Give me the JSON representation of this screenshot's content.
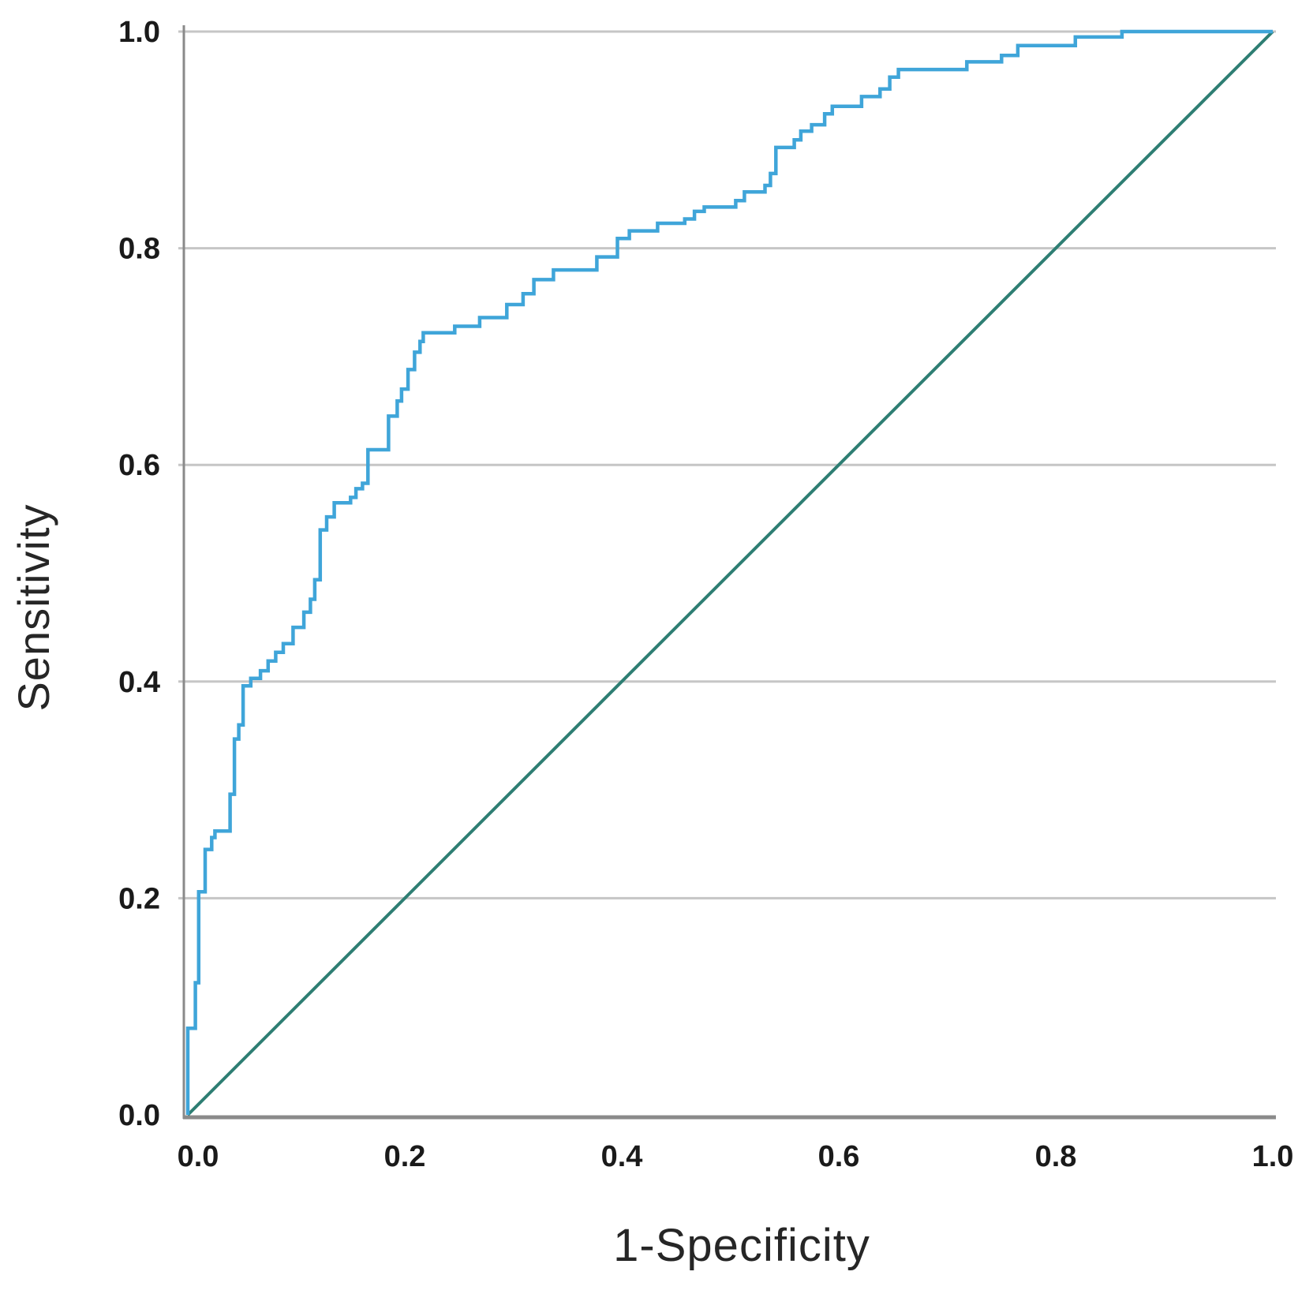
{
  "chart_data": {
    "type": "line",
    "subtype": "roc-curve",
    "title": "",
    "xlabel": "1-Specificity",
    "ylabel": "Sensitivity",
    "xlim": [
      0.0,
      1.0
    ],
    "ylim": [
      0.0,
      1.0
    ],
    "grid": "horizontal-only",
    "legend": "none",
    "x_ticks": {
      "values": [
        0.0,
        0.2,
        0.4,
        0.6,
        0.8,
        1.0
      ],
      "labels": [
        "0.0",
        "0.2",
        "0.4",
        "0.6",
        "0.8",
        "1.0"
      ]
    },
    "y_ticks": {
      "values": [
        0.0,
        0.2,
        0.4,
        0.6,
        0.8,
        1.0
      ],
      "labels": [
        "0.0",
        "0.2",
        "0.4",
        "0.6",
        "0.8",
        "1.0"
      ]
    },
    "colors": {
      "roc_curve": "#3FA5D9",
      "reference_diagonal": "#2E7E73",
      "gridline": "#c6c6c6",
      "axis_line": "#8a8a8a",
      "text": "#1a1a1a"
    },
    "series": [
      {
        "name": "ROC curve",
        "draw": "step-polyline",
        "color_key": "roc_curve",
        "stroke_width": 4.5,
        "points": [
          [
            0.0,
            0.0
          ],
          [
            0.0,
            0.08
          ],
          [
            0.007,
            0.08
          ],
          [
            0.007,
            0.122
          ],
          [
            0.01,
            0.122
          ],
          [
            0.01,
            0.206
          ],
          [
            0.016,
            0.206
          ],
          [
            0.016,
            0.245
          ],
          [
            0.022,
            0.245
          ],
          [
            0.022,
            0.256
          ],
          [
            0.025,
            0.256
          ],
          [
            0.025,
            0.262
          ],
          [
            0.039,
            0.262
          ],
          [
            0.039,
            0.296
          ],
          [
            0.043,
            0.296
          ],
          [
            0.043,
            0.347
          ],
          [
            0.047,
            0.347
          ],
          [
            0.047,
            0.36
          ],
          [
            0.051,
            0.36
          ],
          [
            0.051,
            0.396
          ],
          [
            0.058,
            0.396
          ],
          [
            0.058,
            0.403
          ],
          [
            0.067,
            0.403
          ],
          [
            0.067,
            0.41
          ],
          [
            0.074,
            0.41
          ],
          [
            0.074,
            0.419
          ],
          [
            0.081,
            0.419
          ],
          [
            0.081,
            0.427
          ],
          [
            0.088,
            0.427
          ],
          [
            0.088,
            0.435
          ],
          [
            0.097,
            0.435
          ],
          [
            0.097,
            0.45
          ],
          [
            0.107,
            0.45
          ],
          [
            0.107,
            0.464
          ],
          [
            0.113,
            0.464
          ],
          [
            0.113,
            0.476
          ],
          [
            0.117,
            0.476
          ],
          [
            0.117,
            0.494
          ],
          [
            0.122,
            0.494
          ],
          [
            0.122,
            0.54
          ],
          [
            0.128,
            0.54
          ],
          [
            0.128,
            0.552
          ],
          [
            0.135,
            0.552
          ],
          [
            0.135,
            0.565
          ],
          [
            0.15,
            0.565
          ],
          [
            0.15,
            0.57
          ],
          [
            0.155,
            0.57
          ],
          [
            0.155,
            0.578
          ],
          [
            0.161,
            0.578
          ],
          [
            0.161,
            0.583
          ],
          [
            0.166,
            0.583
          ],
          [
            0.166,
            0.614
          ],
          [
            0.185,
            0.614
          ],
          [
            0.185,
            0.645
          ],
          [
            0.193,
            0.645
          ],
          [
            0.193,
            0.659
          ],
          [
            0.197,
            0.659
          ],
          [
            0.197,
            0.67
          ],
          [
            0.203,
            0.67
          ],
          [
            0.203,
            0.688
          ],
          [
            0.209,
            0.688
          ],
          [
            0.209,
            0.704
          ],
          [
            0.214,
            0.704
          ],
          [
            0.214,
            0.714
          ],
          [
            0.217,
            0.714
          ],
          [
            0.217,
            0.722
          ],
          [
            0.246,
            0.722
          ],
          [
            0.246,
            0.728
          ],
          [
            0.269,
            0.728
          ],
          [
            0.269,
            0.736
          ],
          [
            0.294,
            0.736
          ],
          [
            0.294,
            0.748
          ],
          [
            0.309,
            0.748
          ],
          [
            0.309,
            0.758
          ],
          [
            0.319,
            0.758
          ],
          [
            0.319,
            0.771
          ],
          [
            0.337,
            0.771
          ],
          [
            0.337,
            0.78
          ],
          [
            0.377,
            0.78
          ],
          [
            0.377,
            0.792
          ],
          [
            0.396,
            0.792
          ],
          [
            0.396,
            0.809
          ],
          [
            0.407,
            0.809
          ],
          [
            0.407,
            0.816
          ],
          [
            0.433,
            0.816
          ],
          [
            0.433,
            0.823
          ],
          [
            0.458,
            0.823
          ],
          [
            0.458,
            0.827
          ],
          [
            0.467,
            0.827
          ],
          [
            0.467,
            0.834
          ],
          [
            0.476,
            0.834
          ],
          [
            0.476,
            0.838
          ],
          [
            0.505,
            0.838
          ],
          [
            0.505,
            0.844
          ],
          [
            0.513,
            0.844
          ],
          [
            0.513,
            0.852
          ],
          [
            0.532,
            0.852
          ],
          [
            0.532,
            0.858
          ],
          [
            0.537,
            0.858
          ],
          [
            0.537,
            0.869
          ],
          [
            0.542,
            0.869
          ],
          [
            0.542,
            0.893
          ],
          [
            0.559,
            0.893
          ],
          [
            0.559,
            0.9
          ],
          [
            0.565,
            0.9
          ],
          [
            0.565,
            0.908
          ],
          [
            0.575,
            0.908
          ],
          [
            0.575,
            0.914
          ],
          [
            0.587,
            0.914
          ],
          [
            0.587,
            0.924
          ],
          [
            0.594,
            0.924
          ],
          [
            0.594,
            0.931
          ],
          [
            0.621,
            0.931
          ],
          [
            0.621,
            0.94
          ],
          [
            0.638,
            0.94
          ],
          [
            0.638,
            0.947
          ],
          [
            0.647,
            0.947
          ],
          [
            0.647,
            0.958
          ],
          [
            0.655,
            0.958
          ],
          [
            0.655,
            0.965
          ],
          [
            0.718,
            0.965
          ],
          [
            0.718,
            0.972
          ],
          [
            0.75,
            0.972
          ],
          [
            0.75,
            0.978
          ],
          [
            0.765,
            0.978
          ],
          [
            0.765,
            0.987
          ],
          [
            0.818,
            0.987
          ],
          [
            0.818,
            0.995
          ],
          [
            0.861,
            0.995
          ],
          [
            0.861,
            1.0
          ],
          [
            1.0,
            1.0
          ]
        ]
      },
      {
        "name": "Reference diagonal",
        "draw": "straight-line",
        "color_key": "reference_diagonal",
        "stroke_width": 4,
        "points": [
          [
            0.0,
            0.0
          ],
          [
            1.0,
            1.0
          ]
        ]
      }
    ]
  }
}
